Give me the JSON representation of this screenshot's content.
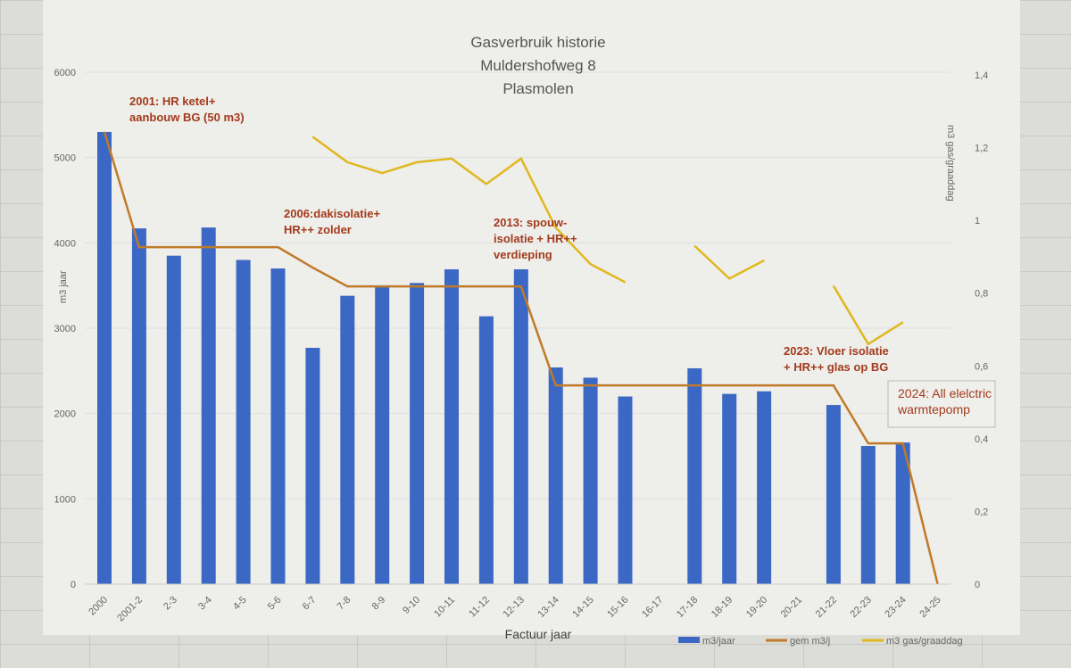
{
  "chart_data": {
    "type": "bar+line",
    "title": [
      "Gasverbruik historie",
      "Muldershofweg 8",
      "Plasmolen"
    ],
    "xlabel": "Factuur jaar",
    "ylabel": "m3 jaar",
    "y2label": "m3 gas/graaddag",
    "ylim": [
      0,
      6000
    ],
    "y2lim": [
      0,
      1.4
    ],
    "yticks": [
      "0",
      "1000",
      "2000",
      "3000",
      "4000",
      "5000",
      "6000"
    ],
    "y2ticks": [
      "0",
      "0,2",
      "0,4",
      "0,6",
      "0,8",
      "1",
      "1,2",
      "1,4"
    ],
    "categories": [
      "2000",
      "2001-2",
      "2-3",
      "3-4",
      "4-5",
      "5-6",
      "6-7",
      "7-8",
      "8-9",
      "9-10",
      "10-11",
      "11-12",
      "12-13",
      "13-14",
      "14-15",
      "15-16",
      "16-17",
      "17-18",
      "18-19",
      "19-20",
      "20-21",
      "21-22",
      "22-23",
      "23-24",
      "24-25"
    ],
    "series": [
      {
        "name": "m3/jaar",
        "type": "bar",
        "color": "#3a68c4",
        "values": [
          5300,
          4170,
          3850,
          4180,
          3800,
          3700,
          2770,
          3380,
          3500,
          3530,
          3690,
          3140,
          3690,
          2540,
          2420,
          2200,
          null,
          2530,
          2230,
          2260,
          null,
          2100,
          1620,
          1660,
          null
        ]
      },
      {
        "name": "gem m3/j",
        "type": "line",
        "color": "#c07a2a",
        "values": [
          5300,
          3950,
          3950,
          3950,
          3950,
          3950,
          3710,
          3490,
          3490,
          3490,
          3490,
          3490,
          3490,
          2330,
          2330,
          2330,
          2330,
          2330,
          2330,
          2330,
          2330,
          2330,
          1650,
          1650,
          0
        ]
      },
      {
        "name": "m3 gas/graaddag",
        "type": "line",
        "axis": "right",
        "color": "#e0b820",
        "values": [
          null,
          null,
          null,
          null,
          null,
          null,
          1.23,
          1.16,
          1.13,
          1.16,
          1.17,
          1.1,
          1.17,
          0.98,
          0.88,
          0.83,
          null,
          0.93,
          0.84,
          0.89,
          null,
          0.82,
          0.66,
          0.72,
          null
        ]
      }
    ],
    "annotations": [
      {
        "lines": [
          "2001: HR ketel+",
          "aanbouw BG (50 m3)"
        ]
      },
      {
        "lines": [
          "2006:dakisolatie+",
          "HR++ zolder"
        ]
      },
      {
        "lines": [
          "2013: spouw-",
          "isolatie + HR++",
          "verdieping"
        ]
      },
      {
        "lines": [
          "2023: Vloer isolatie",
          "+ HR++ glas op BG"
        ]
      },
      {
        "lines": [
          "2024: All elelctric",
          "warmtepomp"
        ]
      }
    ],
    "legend_position": "bottom-right"
  }
}
